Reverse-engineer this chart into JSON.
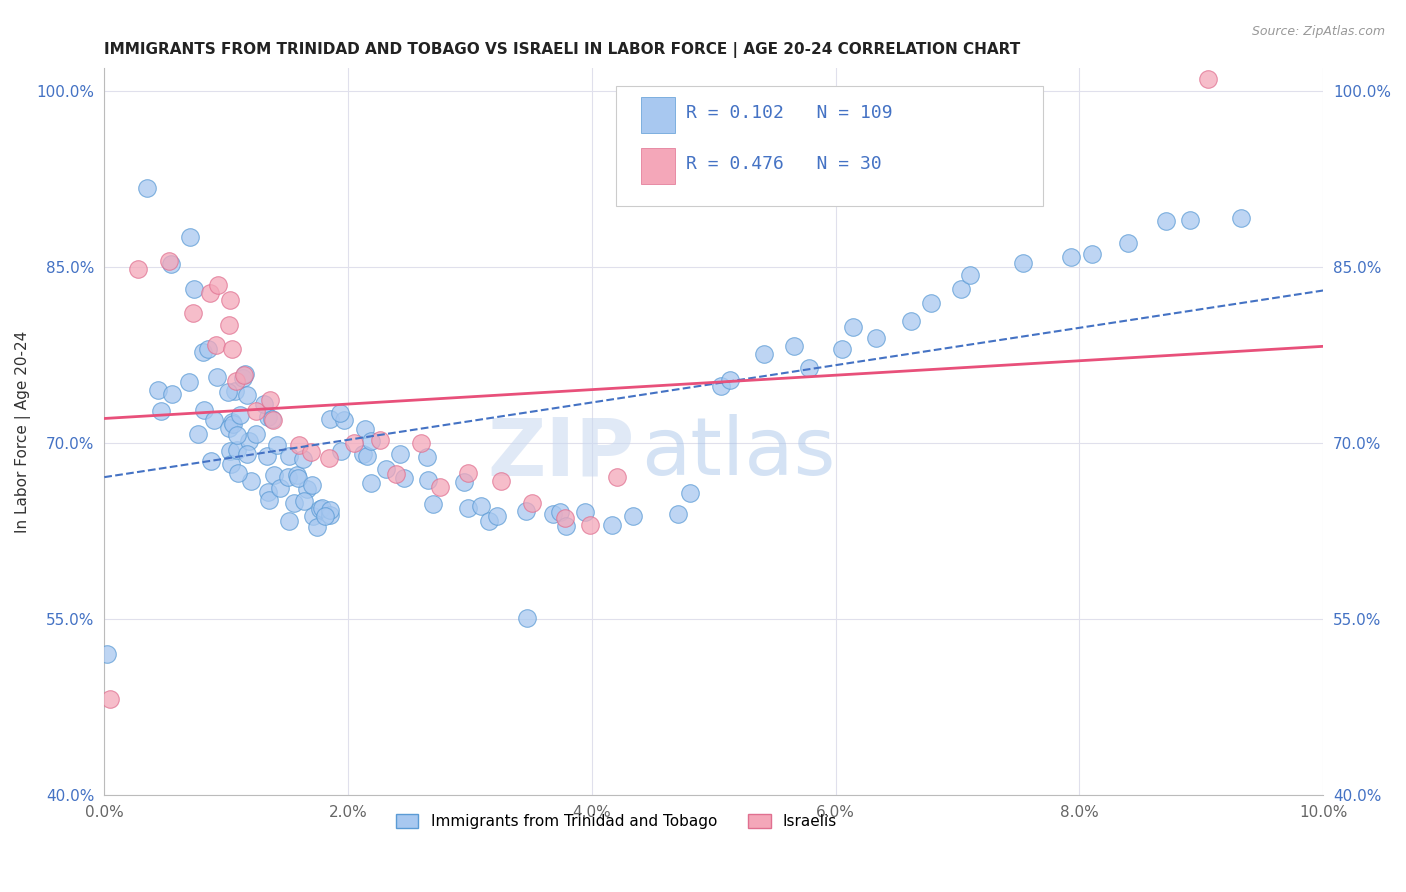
{
  "title": "IMMIGRANTS FROM TRINIDAD AND TOBAGO VS ISRAELI IN LABOR FORCE | AGE 20-24 CORRELATION CHART",
  "source": "Source: ZipAtlas.com",
  "ylabel": "In Labor Force | Age 20-24",
  "xlim": [
    0.0,
    0.1
  ],
  "ylim": [
    0.4,
    1.02
  ],
  "xticks": [
    0.0,
    0.02,
    0.04,
    0.06,
    0.08,
    0.1
  ],
  "yticks": [
    0.4,
    0.55,
    0.7,
    0.85,
    1.0
  ],
  "xtick_labels": [
    "0.0%",
    "2.0%",
    "4.0%",
    "6.0%",
    "8.0%",
    "10.0%"
  ],
  "ytick_labels": [
    "40.0%",
    "55.0%",
    "70.0%",
    "85.0%",
    "100.0%"
  ],
  "blue_color": "#A8C8F0",
  "pink_color": "#F4A7B9",
  "blue_edge_color": "#5B9BD5",
  "pink_edge_color": "#E07090",
  "blue_line_color": "#4472C4",
  "pink_line_color": "#E8507A",
  "R_blue": 0.102,
  "N_blue": 109,
  "R_pink": 0.476,
  "N_pink": 30,
  "blue_scatter_x": [
    0.0008,
    0.003,
    0.0045,
    0.0052,
    0.0058,
    0.0062,
    0.0068,
    0.0072,
    0.0075,
    0.0078,
    0.008,
    0.0082,
    0.0085,
    0.0088,
    0.009,
    0.0092,
    0.0094,
    0.0096,
    0.0098,
    0.01,
    0.0102,
    0.0104,
    0.0106,
    0.0108,
    0.011,
    0.0112,
    0.0114,
    0.0116,
    0.0118,
    0.012,
    0.0122,
    0.0124,
    0.0126,
    0.0128,
    0.013,
    0.0132,
    0.0134,
    0.0136,
    0.0138,
    0.014,
    0.0142,
    0.0144,
    0.0146,
    0.0148,
    0.015,
    0.0152,
    0.0154,
    0.0156,
    0.0158,
    0.016,
    0.0162,
    0.0164,
    0.0166,
    0.0168,
    0.017,
    0.0172,
    0.0174,
    0.0176,
    0.0178,
    0.018,
    0.0185,
    0.019,
    0.0195,
    0.02,
    0.0205,
    0.021,
    0.0215,
    0.022,
    0.0225,
    0.023,
    0.024,
    0.025,
    0.026,
    0.027,
    0.028,
    0.029,
    0.03,
    0.031,
    0.032,
    0.033,
    0.034,
    0.035,
    0.036,
    0.037,
    0.038,
    0.04,
    0.042,
    0.044,
    0.046,
    0.048,
    0.05,
    0.052,
    0.054,
    0.056,
    0.058,
    0.06,
    0.062,
    0.064,
    0.066,
    0.068,
    0.07,
    0.072,
    0.075,
    0.078,
    0.081,
    0.084,
    0.087,
    0.09,
    0.093
  ],
  "blue_scatter_y": [
    0.53,
    0.92,
    0.72,
    0.75,
    0.85,
    0.87,
    0.74,
    0.76,
    0.78,
    0.82,
    0.72,
    0.73,
    0.76,
    0.78,
    0.68,
    0.71,
    0.72,
    0.74,
    0.69,
    0.71,
    0.72,
    0.73,
    0.75,
    0.76,
    0.68,
    0.69,
    0.7,
    0.71,
    0.73,
    0.75,
    0.67,
    0.68,
    0.69,
    0.7,
    0.72,
    0.73,
    0.66,
    0.67,
    0.68,
    0.7,
    0.72,
    0.65,
    0.66,
    0.68,
    0.7,
    0.64,
    0.66,
    0.67,
    0.69,
    0.63,
    0.65,
    0.67,
    0.63,
    0.65,
    0.66,
    0.64,
    0.65,
    0.63,
    0.65,
    0.72,
    0.64,
    0.7,
    0.72,
    0.73,
    0.69,
    0.71,
    0.68,
    0.7,
    0.67,
    0.68,
    0.69,
    0.67,
    0.66,
    0.68,
    0.65,
    0.67,
    0.66,
    0.65,
    0.64,
    0.64,
    0.64,
    0.55,
    0.64,
    0.64,
    0.63,
    0.64,
    0.65,
    0.64,
    0.64,
    0.66,
    0.75,
    0.75,
    0.78,
    0.77,
    0.76,
    0.78,
    0.8,
    0.79,
    0.81,
    0.82,
    0.83,
    0.84,
    0.85,
    0.86,
    0.87,
    0.875,
    0.88,
    0.885,
    0.89
  ],
  "pink_scatter_x": [
    0.0008,
    0.003,
    0.005,
    0.007,
    0.008,
    0.0085,
    0.009,
    0.01,
    0.0105,
    0.011,
    0.0115,
    0.012,
    0.013,
    0.0135,
    0.014,
    0.015,
    0.016,
    0.018,
    0.02,
    0.022,
    0.024,
    0.026,
    0.028,
    0.03,
    0.032,
    0.035,
    0.038,
    0.04,
    0.042,
    0.09
  ],
  "pink_scatter_y": [
    0.49,
    0.85,
    0.85,
    0.82,
    0.82,
    0.84,
    0.78,
    0.8,
    0.82,
    0.76,
    0.78,
    0.76,
    0.72,
    0.74,
    0.72,
    0.7,
    0.69,
    0.68,
    0.7,
    0.7,
    0.68,
    0.7,
    0.67,
    0.68,
    0.66,
    0.65,
    0.64,
    0.63,
    0.68,
    1.0
  ],
  "watermark_zip": "ZIP",
  "watermark_atlas": "atlas",
  "background_color": "#FFFFFF",
  "grid_color": "#E0E0EC"
}
